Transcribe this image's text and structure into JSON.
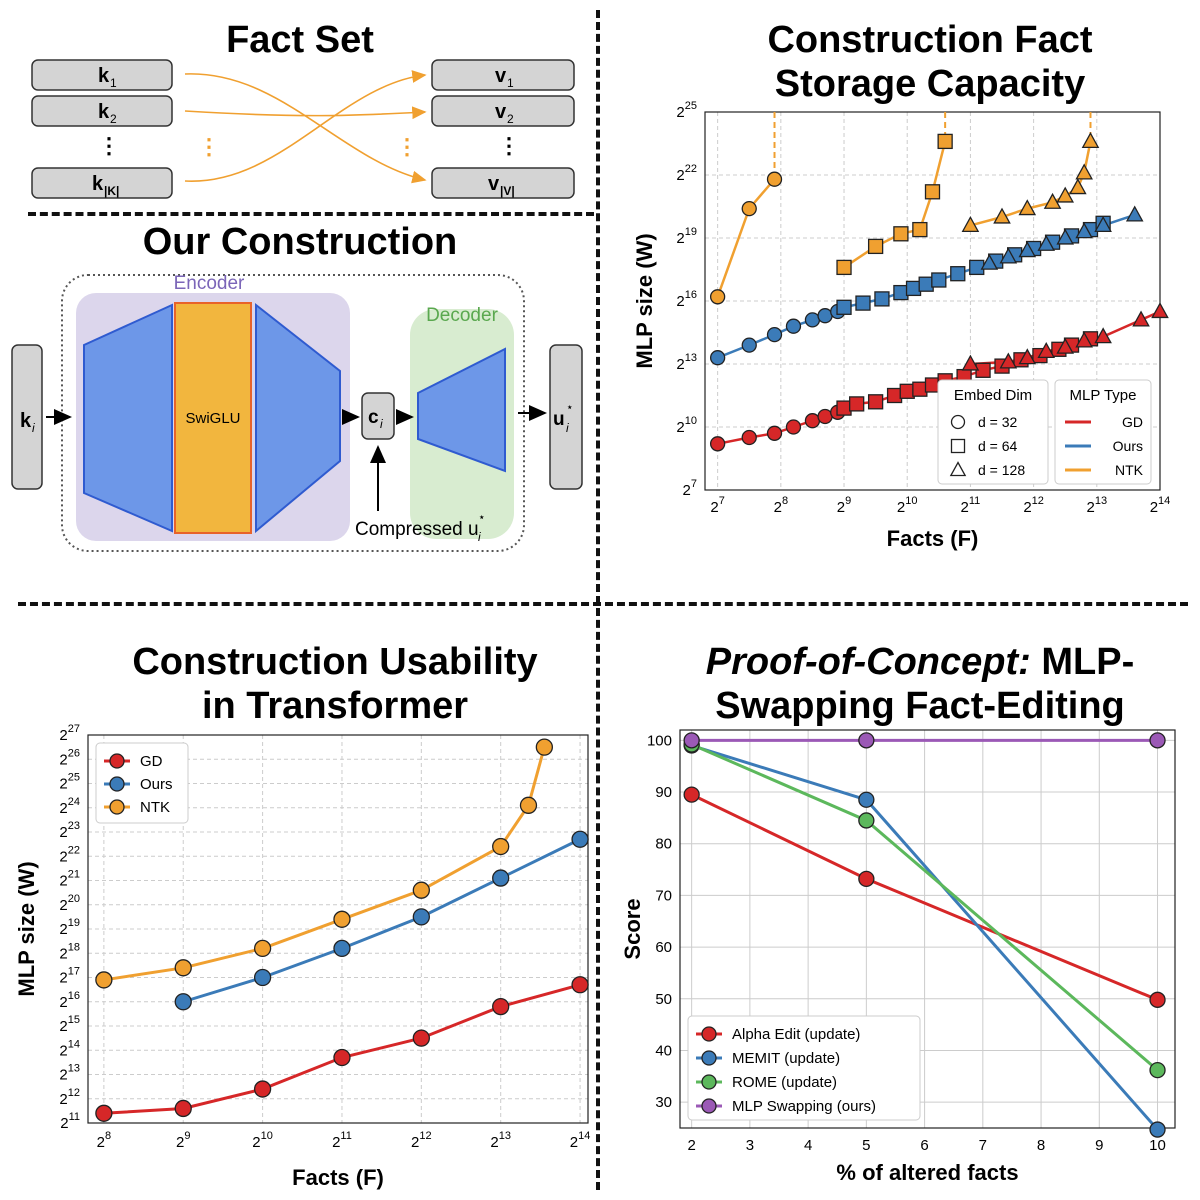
{
  "panels": {
    "fact_set": {
      "title": "Fact Set",
      "keys": [
        "k",
        "k",
        "k"
      ],
      "key_subs": [
        "1",
        "2",
        "|K|"
      ],
      "values": [
        "v",
        "v",
        "v"
      ],
      "value_subs": [
        "1",
        "2",
        "|V|"
      ],
      "ellipsis": "⋮"
    },
    "construction": {
      "title": "Our Construction",
      "encoder_label": "Encoder",
      "decoder_label": "Decoder",
      "swiglu_label": "SwiGLU",
      "input": "k",
      "input_sub": "i",
      "latent": "c",
      "latent_sub": "i",
      "output": "u",
      "output_sub": "i",
      "output_sup": "⋆",
      "compressed_label": "Compressed u",
      "compressed_sub": "i",
      "compressed_sup": "⋆"
    }
  },
  "colors": {
    "gd": "#d62728",
    "ours": "#3b7bb8",
    "ntk": "#f0a030",
    "alpha": "#d62728",
    "memit": "#3b7bb8",
    "rome": "#5cb85c",
    "swap": "#9b59b6",
    "encoder_bg": "#dcd6ec",
    "decoder_bg": "#d8ecd0",
    "blue_trap": "#6d97e8",
    "swiglu": "#f2b63e"
  },
  "chart_data": [
    {
      "type": "scatter",
      "title": "Construction Fact Storage Capacity",
      "title_lines": [
        "Construction Fact",
        "Storage Capacity"
      ],
      "xlabel": "Facts (F)",
      "ylabel": "MLP size (W)",
      "x_log2_range": [
        6.8,
        14
      ],
      "y_log2_range": [
        7,
        25
      ],
      "x_ticks": [
        7,
        8,
        9,
        10,
        11,
        12,
        13,
        14
      ],
      "y_ticks": [
        7,
        10,
        13,
        16,
        19,
        22,
        25
      ],
      "tick_base": "2",
      "legend_embed": {
        "title": "Embed Dim",
        "items": [
          "d = 32",
          "d = 64",
          "d = 128"
        ]
      },
      "legend_type": {
        "title": "MLP Type",
        "items": [
          "GD",
          "Ours",
          "NTK"
        ]
      },
      "series": [
        {
          "name": "GD",
          "color": "gd",
          "segments": [
            {
              "marker": "circle",
              "points": [
                [
                  7,
                  9.2
                ],
                [
                  7.5,
                  9.5
                ],
                [
                  7.9,
                  9.7
                ],
                [
                  8.2,
                  10.0
                ],
                [
                  8.5,
                  10.3
                ],
                [
                  8.7,
                  10.5
                ],
                [
                  8.9,
                  10.7
                ]
              ]
            },
            {
              "marker": "square",
              "points": [
                [
                  9,
                  10.9
                ],
                [
                  9.2,
                  11.1
                ],
                [
                  9.5,
                  11.2
                ],
                [
                  9.8,
                  11.5
                ],
                [
                  10,
                  11.7
                ],
                [
                  10.2,
                  11.8
                ],
                [
                  10.4,
                  12.0
                ],
                [
                  10.6,
                  12.2
                ],
                [
                  10.9,
                  12.4
                ],
                [
                  11.2,
                  12.7
                ],
                [
                  11.5,
                  12.9
                ],
                [
                  11.8,
                  13.2
                ],
                [
                  12.1,
                  13.4
                ],
                [
                  12.4,
                  13.7
                ],
                [
                  12.6,
                  13.9
                ],
                [
                  12.9,
                  14.2
                ]
              ]
            },
            {
              "marker": "triangle",
              "points": [
                [
                  11,
                  13.0
                ],
                [
                  11.6,
                  13.1
                ],
                [
                  11.9,
                  13.3
                ],
                [
                  12.2,
                  13.6
                ],
                [
                  12.5,
                  13.8
                ],
                [
                  12.8,
                  14.1
                ],
                [
                  13.1,
                  14.3
                ],
                [
                  13.7,
                  15.1
                ],
                [
                  14,
                  15.5
                ]
              ]
            }
          ]
        },
        {
          "name": "Ours",
          "color": "ours",
          "segments": [
            {
              "marker": "circle",
              "points": [
                [
                  7,
                  13.3
                ],
                [
                  7.5,
                  13.9
                ],
                [
                  7.9,
                  14.4
                ],
                [
                  8.2,
                  14.8
                ],
                [
                  8.5,
                  15.1
                ],
                [
                  8.7,
                  15.3
                ],
                [
                  8.9,
                  15.5
                ]
              ]
            },
            {
              "marker": "square",
              "points": [
                [
                  9,
                  15.7
                ],
                [
                  9.3,
                  15.9
                ],
                [
                  9.6,
                  16.1
                ],
                [
                  9.9,
                  16.4
                ],
                [
                  10.1,
                  16.6
                ],
                [
                  10.3,
                  16.8
                ],
                [
                  10.5,
                  17.0
                ],
                [
                  10.8,
                  17.3
                ],
                [
                  11.1,
                  17.6
                ],
                [
                  11.4,
                  17.9
                ],
                [
                  11.7,
                  18.2
                ],
                [
                  12.0,
                  18.5
                ],
                [
                  12.3,
                  18.8
                ],
                [
                  12.6,
                  19.1
                ],
                [
                  12.9,
                  19.4
                ],
                [
                  13.1,
                  19.7
                ]
              ]
            },
            {
              "marker": "triangle",
              "points": [
                [
                  11.3,
                  17.8
                ],
                [
                  11.6,
                  18.1
                ],
                [
                  11.9,
                  18.4
                ],
                [
                  12.2,
                  18.7
                ],
                [
                  12.5,
                  19.0
                ],
                [
                  12.8,
                  19.3
                ],
                [
                  13.1,
                  19.6
                ],
                [
                  13.6,
                  20.1
                ]
              ]
            }
          ]
        },
        {
          "name": "NTK",
          "color": "ntk",
          "segments": [
            {
              "marker": "circle",
              "points": [
                [
                  7,
                  16.2
                ],
                [
                  7.5,
                  20.4
                ],
                [
                  7.9,
                  21.8
                ]
              ]
            },
            {
              "marker": "square",
              "points": [
                [
                  9,
                  17.6
                ],
                [
                  9.5,
                  18.6
                ],
                [
                  9.9,
                  19.2
                ],
                [
                  10.2,
                  19.4
                ],
                [
                  10.4,
                  21.2
                ],
                [
                  10.6,
                  23.6
                ]
              ]
            },
            {
              "marker": "triangle",
              "points": [
                [
                  11,
                  19.6
                ],
                [
                  11.5,
                  20.0
                ],
                [
                  11.9,
                  20.4
                ],
                [
                  12.3,
                  20.7
                ],
                [
                  12.5,
                  21.0
                ],
                [
                  12.7,
                  21.4
                ],
                [
                  12.8,
                  22.1
                ],
                [
                  12.9,
                  23.6
                ]
              ]
            }
          ]
        }
      ],
      "divergence_x": [
        7.9,
        10.6,
        12.9
      ]
    },
    {
      "type": "line",
      "title": "Construction Usability in Transformer",
      "title_lines": [
        "Construction Usability",
        "in Transformer"
      ],
      "xlabel": "Facts (F)",
      "ylabel": "MLP size (W)",
      "x_log2_range": [
        7.8,
        14.1
      ],
      "y_log2_range": [
        11,
        27
      ],
      "x_ticks": [
        8,
        9,
        10,
        11,
        12,
        13,
        14
      ],
      "y_ticks": [
        11,
        12,
        13,
        14,
        15,
        16,
        17,
        18,
        19,
        20,
        21,
        22,
        23,
        24,
        25,
        26,
        27
      ],
      "tick_base": "2",
      "legend": [
        "GD",
        "Ours",
        "NTK"
      ],
      "series": [
        {
          "name": "GD",
          "color": "gd",
          "x": [
            8,
            9,
            10,
            11,
            12,
            13,
            14
          ],
          "y": [
            11.4,
            11.6,
            12.4,
            13.7,
            14.5,
            15.8,
            16.7
          ]
        },
        {
          "name": "Ours",
          "color": "ours",
          "x": [
            9,
            10,
            11,
            12,
            13,
            14
          ],
          "y": [
            16.0,
            17.0,
            18.2,
            19.5,
            21.1,
            22.7
          ]
        },
        {
          "name": "NTK",
          "color": "ntk",
          "x": [
            8,
            9,
            10,
            11,
            12,
            13,
            13.35,
            13.55
          ],
          "y": [
            16.9,
            17.4,
            18.2,
            19.4,
            20.6,
            22.4,
            24.1,
            26.5
          ]
        }
      ]
    },
    {
      "type": "line",
      "title_italic": "Proof-of-Concept:",
      "title_rest": " MLP-",
      "title_line2": "Swapping Fact-Editing",
      "xlabel": "% of altered facts",
      "ylabel": "Score",
      "xlim": [
        1.8,
        10.3
      ],
      "ylim": [
        25,
        102
      ],
      "x_ticks": [
        2,
        3,
        4,
        5,
        6,
        7,
        8,
        9,
        10
      ],
      "y_ticks": [
        30,
        40,
        50,
        60,
        70,
        80,
        90,
        100
      ],
      "legend": [
        "Alpha Edit (update)",
        "MEMIT (update)",
        "ROME (update)",
        "MLP Swapping (ours)"
      ],
      "series": [
        {
          "name": "Alpha Edit (update)",
          "color": "alpha",
          "x": [
            2,
            5,
            10
          ],
          "y": [
            89.5,
            73.2,
            49.8
          ]
        },
        {
          "name": "MEMIT (update)",
          "color": "memit",
          "x": [
            2,
            5,
            10
          ],
          "y": [
            99.0,
            88.5,
            24.7
          ]
        },
        {
          "name": "ROME (update)",
          "color": "rome",
          "x": [
            2,
            5,
            10
          ],
          "y": [
            99.2,
            84.5,
            36.2
          ]
        },
        {
          "name": "MLP Swapping (ours)",
          "color": "swap",
          "x": [
            2,
            5,
            10
          ],
          "y": [
            100,
            100,
            100
          ]
        }
      ]
    }
  ]
}
